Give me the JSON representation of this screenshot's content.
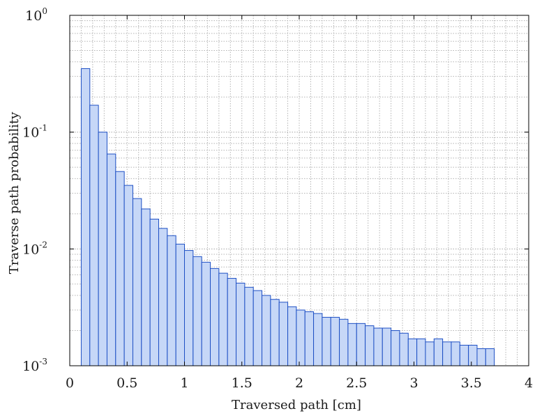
{
  "chart_data": {
    "type": "bar",
    "xlabel": "Traversed path [cm]",
    "ylabel": "Traverse path probability",
    "xlim": [
      0,
      4
    ],
    "ylim": [
      0.001,
      1
    ],
    "yscale": "log",
    "grid": true,
    "bin_width": 0.075,
    "x_start": 0.1,
    "x_ticks": [
      {
        "v": 0,
        "label": "0"
      },
      {
        "v": 0.5,
        "label": "0.5"
      },
      {
        "v": 1,
        "label": "1"
      },
      {
        "v": 1.5,
        "label": "1.5"
      },
      {
        "v": 2,
        "label": "2"
      },
      {
        "v": 2.5,
        "label": "2.5"
      },
      {
        "v": 3,
        "label": "3"
      },
      {
        "v": 3.5,
        "label": "3.5"
      },
      {
        "v": 4,
        "label": "4"
      }
    ],
    "y_ticks": [
      {
        "v": 1,
        "base": "10",
        "exp": "0"
      },
      {
        "v": 0.1,
        "base": "10",
        "exp": "-1"
      },
      {
        "v": 0.01,
        "base": "10",
        "exp": "-2"
      },
      {
        "v": 0.001,
        "base": "10",
        "exp": "-3"
      }
    ],
    "values": [
      0.35,
      0.17,
      0.1,
      0.065,
      0.046,
      0.035,
      0.027,
      0.022,
      0.018,
      0.015,
      0.013,
      0.011,
      0.0097,
      0.0086,
      0.0077,
      0.0068,
      0.0062,
      0.0056,
      0.0051,
      0.0047,
      0.0044,
      0.004,
      0.0037,
      0.0035,
      0.0032,
      0.003,
      0.0029,
      0.0028,
      0.0026,
      0.0026,
      0.0025,
      0.0023,
      0.0023,
      0.0022,
      0.0021,
      0.0021,
      0.002,
      0.0019,
      0.0017,
      0.0017,
      0.0016,
      0.0017,
      0.0016,
      0.0016,
      0.0015,
      0.0015,
      0.0014,
      0.0014
    ],
    "colors": {
      "bar_fill": "#c6d7f7",
      "bar_stroke": "#1d4fc4"
    }
  }
}
